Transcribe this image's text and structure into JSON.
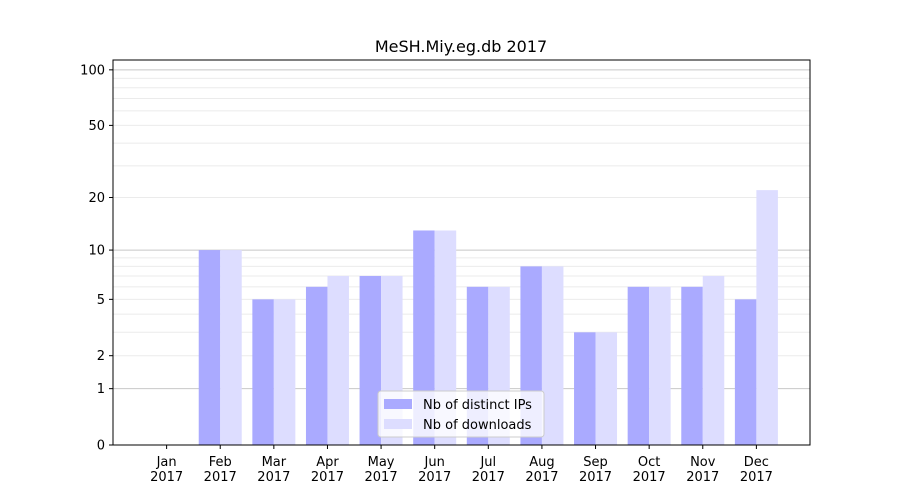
{
  "chart_data": {
    "type": "bar",
    "title": "MeSH.Miy.eg.db 2017",
    "xlabel": "",
    "ylabel": "",
    "yscale": "symlog (log10(1+y))",
    "ylim": [
      0,
      113
    ],
    "yticks": [
      0,
      1,
      2,
      5,
      10,
      20,
      50,
      100
    ],
    "grid": true,
    "legend_position": "lower-center",
    "categories": [
      "Jan\n2017",
      "Feb\n2017",
      "Mar\n2017",
      "Apr\n2017",
      "May\n2017",
      "Jun\n2017",
      "Jul\n2017",
      "Aug\n2017",
      "Sep\n2017",
      "Oct\n2017",
      "Nov\n2017",
      "Dec\n2017"
    ],
    "series": [
      {
        "name": "Nb of distinct IPs",
        "color": "#aaaaff",
        "values": [
          0,
          10,
          5,
          6,
          7,
          13,
          6,
          8,
          3,
          6,
          6,
          5
        ]
      },
      {
        "name": "Nb of downloads",
        "color": "#ddddff",
        "values": [
          0,
          10,
          5,
          7,
          7,
          13,
          6,
          8,
          3,
          6,
          7,
          22
        ]
      }
    ]
  }
}
